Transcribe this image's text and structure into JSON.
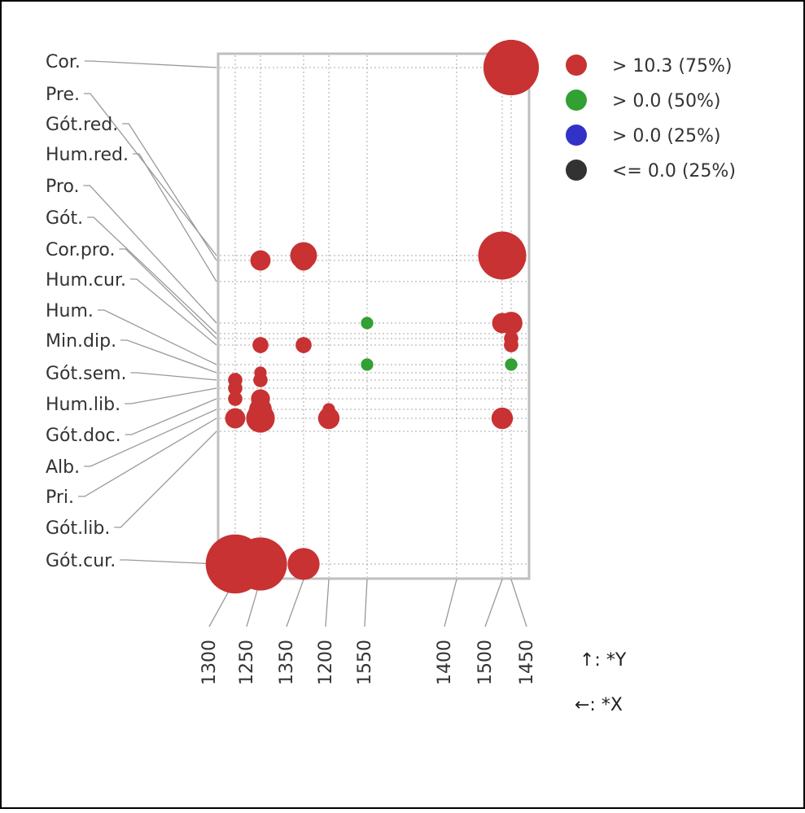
{
  "chart_data": {
    "type": "scatter",
    "title": "",
    "xlabel": "",
    "ylabel": "",
    "x_categories": [
      "1300",
      "1250",
      "1350",
      "1200",
      "1550",
      "1400",
      "1500",
      "1450"
    ],
    "y_categories": [
      "Cor.",
      "Pre.",
      "Gót.red.",
      "Hum.red.",
      "Pro.",
      "Gót.",
      "Cor.pro.",
      "Hum.cur.",
      "Hum.",
      "Min.dip.",
      "Gót.sem.",
      "Hum.lib.",
      "Gót.doc.",
      "Alb.",
      "Pri.",
      "Gót.lib.",
      "Gót.cur."
    ],
    "grid": true,
    "legend_position": "top-right",
    "legend": [
      {
        "label": "> 10.3 (75%)",
        "color": "#c83232"
      },
      {
        "label": "> 0.0 (50%)",
        "color": "#32a032"
      },
      {
        "label": "> 0.0 (25%)",
        "color": "#3232c8"
      },
      {
        "label": "<= 0.0 (25%)",
        "color": "#323232"
      }
    ],
    "points": [
      {
        "x": "1500",
        "y": "Cor.",
        "value": 12,
        "color": "#c83232"
      },
      {
        "x": "1450",
        "y": "Cor.",
        "value": 60,
        "color": "#c83232"
      },
      {
        "x": "1350",
        "y": "Pre.",
        "value": 14,
        "color": "#c83232"
      },
      {
        "x": "1500",
        "y": "Pre.",
        "value": 45,
        "color": "#c83232"
      },
      {
        "x": "1450",
        "y": "Pre.",
        "value": 16,
        "color": "#c83232"
      },
      {
        "x": "1250",
        "y": "Gót.red.",
        "value": 8,
        "color": "#c83232"
      },
      {
        "x": "1350",
        "y": "Gót.red.",
        "value": 8,
        "color": "#c83232"
      },
      {
        "x": "1450",
        "y": "Gót.red.",
        "value": 14,
        "color": "#c83232"
      },
      {
        "x": "1550",
        "y": "Pro.",
        "value": 3,
        "color": "#32a032"
      },
      {
        "x": "1500",
        "y": "Pro.",
        "value": 8,
        "color": "#c83232"
      },
      {
        "x": "1450",
        "y": "Pro.",
        "value": 3,
        "color": "#32a032"
      },
      {
        "x": "1450",
        "y": "Pro.",
        "value": 10,
        "color": "#c83232"
      },
      {
        "x": "1450",
        "y": "Cor.pro.",
        "value": 4,
        "color": "#c83232"
      },
      {
        "x": "1250",
        "y": "Hum.cur.",
        "value": 5,
        "color": "#c83232"
      },
      {
        "x": "1350",
        "y": "Hum.cur.",
        "value": 5,
        "color": "#c83232"
      },
      {
        "x": "1450",
        "y": "Hum.cur.",
        "value": 4,
        "color": "#c83232"
      },
      {
        "x": "1450",
        "y": "Hum.cur.",
        "value": 4,
        "color": "#c83232"
      },
      {
        "x": "1550",
        "y": "Hum.",
        "value": 2,
        "color": "#c83232"
      },
      {
        "x": "1550",
        "y": "Hum.",
        "value": 3,
        "color": "#32a032"
      },
      {
        "x": "1450",
        "y": "Hum.",
        "value": 3,
        "color": "#32a032"
      },
      {
        "x": "1250",
        "y": "Min.dip.",
        "value": 3,
        "color": "#c83232"
      },
      {
        "x": "1300",
        "y": "Gót.sem.",
        "value": 4,
        "color": "#c83232"
      },
      {
        "x": "1250",
        "y": "Gót.sem.",
        "value": 4,
        "color": "#c83232"
      },
      {
        "x": "1300",
        "y": "Hum.lib.",
        "value": 4,
        "color": "#c83232"
      },
      {
        "x": "1300",
        "y": "Gót.doc.",
        "value": 4,
        "color": "#c83232"
      },
      {
        "x": "1250",
        "y": "Gót.doc.",
        "value": 7,
        "color": "#c83232"
      },
      {
        "x": "1250",
        "y": "Alb.",
        "value": 10,
        "color": "#c83232"
      },
      {
        "x": "1200",
        "y": "Alb.",
        "value": 3,
        "color": "#c83232"
      },
      {
        "x": "1300",
        "y": "Pri.",
        "value": 8,
        "color": "#c83232"
      },
      {
        "x": "1250",
        "y": "Pri.",
        "value": 16,
        "color": "#c83232"
      },
      {
        "x": "1200",
        "y": "Pri.",
        "value": 9,
        "color": "#c83232"
      },
      {
        "x": "1500",
        "y": "Pri.",
        "value": 9,
        "color": "#c83232"
      },
      {
        "x": "1300",
        "y": "Gót.cur.",
        "value": 68,
        "color": "#c83232"
      },
      {
        "x": "1250",
        "y": "Gót.cur.",
        "value": 55,
        "color": "#c83232"
      },
      {
        "x": "1350",
        "y": "Gót.cur.",
        "value": 20,
        "color": "#c83232"
      }
    ]
  },
  "axis_hints": {
    "y_hint": "↑: *Y",
    "x_hint": "←: *X"
  }
}
